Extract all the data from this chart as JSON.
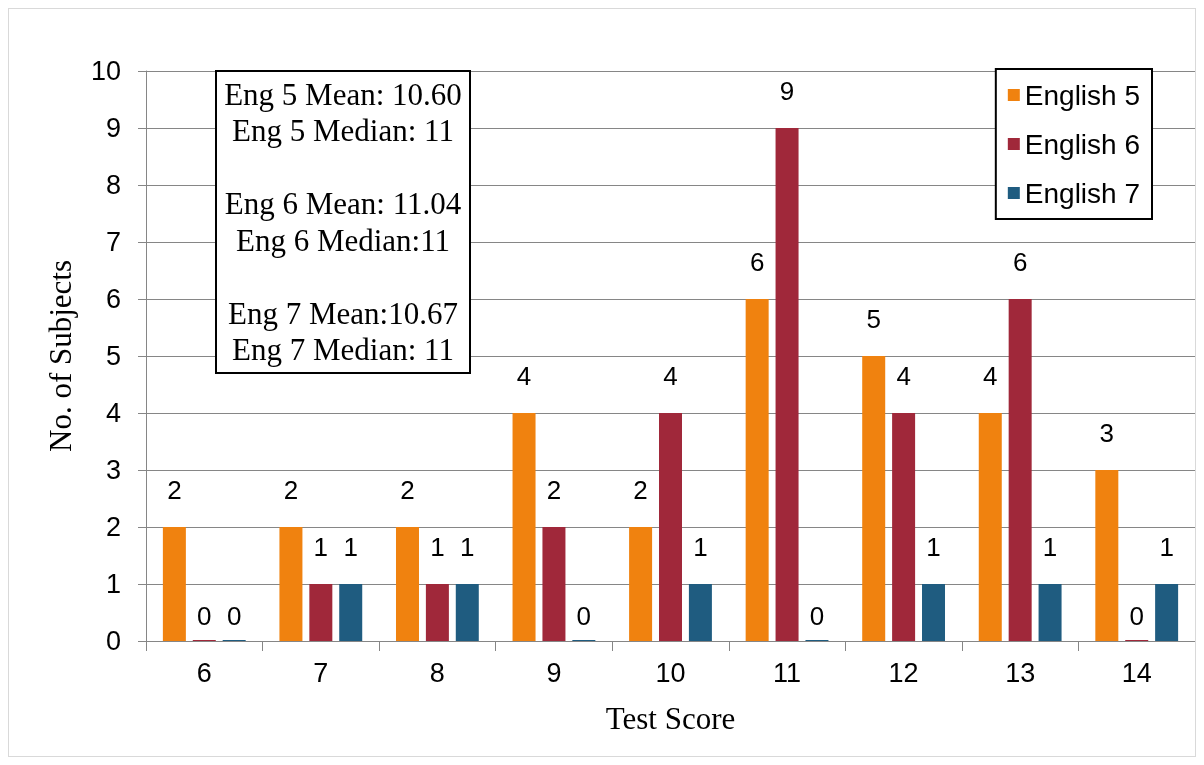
{
  "chart_data": {
    "type": "bar",
    "xlabel": "Test Score",
    "ylabel": "No. of Subjects",
    "categories": [
      "6",
      "7",
      "8",
      "9",
      "10",
      "11",
      "12",
      "13",
      "14"
    ],
    "series": [
      {
        "name": "English 5",
        "color": "#f0820f",
        "values": [
          2,
          2,
          2,
          4,
          2,
          6,
          5,
          4,
          3
        ]
      },
      {
        "name": "English 6",
        "color": "#a0283a",
        "values": [
          0,
          1,
          1,
          2,
          4,
          9,
          4,
          6,
          0
        ]
      },
      {
        "name": "English 7",
        "color": "#1f5c80",
        "values": [
          0,
          1,
          1,
          0,
          1,
          0,
          1,
          1,
          1
        ]
      }
    ],
    "ylim": [
      0,
      10
    ],
    "yticks": [
      0,
      1,
      2,
      3,
      4,
      5,
      6,
      7,
      8,
      9,
      10
    ],
    "grid": "y",
    "legend": "top right",
    "data_labels": true,
    "annotations": [
      "Eng 5 Mean: 10.60\nEng 5 Median: 11",
      "Eng 6 Mean: 11.04\nEng 6 Median:11",
      "Eng 7 Mean:10.67\nEng 7 Median: 11"
    ]
  }
}
